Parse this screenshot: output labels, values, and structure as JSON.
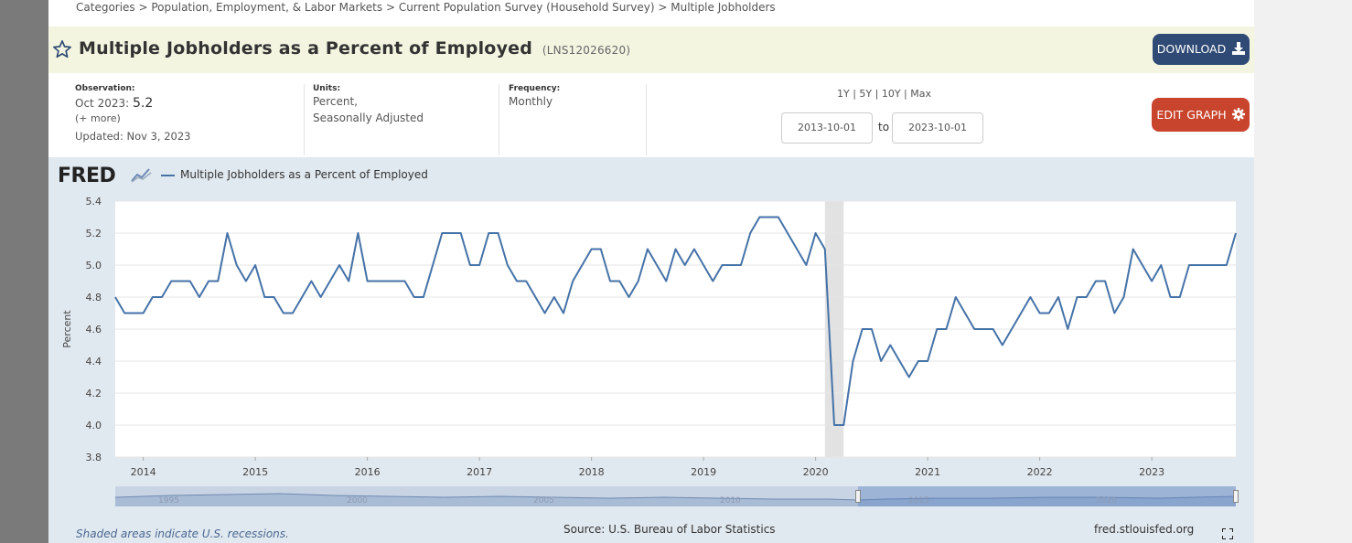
{
  "breadcrumb": {
    "text": "Categories > Population, Employment, & Labor Markets > Current Population Survey (Household Survey) > Multiple Jobholders"
  },
  "header": {
    "title": "Multiple Jobholders as a Percent of Employed",
    "series_id": "(LNS12026620)",
    "download_label": "DOWNLOAD"
  },
  "meta": {
    "observation_label": "Observation:",
    "observation_date": "Oct 2023:",
    "observation_value": "5.2",
    "more_link": "(+ more)",
    "updated": "Updated: Nov 3, 2023",
    "units_label": "Units:",
    "units_line1": "Percent,",
    "units_line2": "Seasonally Adjusted",
    "frequency_label": "Frequency:",
    "frequency_value": "Monthly"
  },
  "range": {
    "links": "1Y | 5Y | 10Y | Max",
    "start": "2013-10-01",
    "to": "to",
    "end": "2023-10-01"
  },
  "edit_label": "EDIT GRAPH",
  "chart": {
    "logo": "FRED",
    "legend": "Multiple Jobholders as a Percent of Employed",
    "recession_note": "Shaded areas indicate U.S. recessions.",
    "source": "Source: U.S. Bureau of Labor Statistics",
    "site": "fred.stlouisfed.org",
    "navigator_years": [
      "1995",
      "2000",
      "2005",
      "2010",
      "2015",
      "2020"
    ]
  },
  "colors": {
    "line": "#4572a7",
    "download": "#2f4a74",
    "edit": "#c9442c",
    "recession": "#e2e2e2"
  },
  "chart_data": {
    "type": "line",
    "title": "",
    "xlabel": "",
    "ylabel": "Percent",
    "ylim": [
      3.8,
      5.4
    ],
    "yticks": [
      "3.8",
      "4.0",
      "4.2",
      "4.4",
      "4.6",
      "4.8",
      "5.0",
      "5.2",
      "5.4"
    ],
    "xticks": [
      "2014",
      "2015",
      "2016",
      "2017",
      "2018",
      "2019",
      "2020",
      "2021",
      "2022",
      "2023"
    ],
    "x_start": "2013-10",
    "x_end": "2023-10",
    "recession": [
      "2020-02",
      "2020-04"
    ],
    "series": [
      {
        "name": "Multiple Jobholders as a Percent of Employed",
        "values": [
          4.8,
          4.7,
          4.7,
          4.7,
          4.8,
          4.8,
          4.9,
          4.9,
          4.9,
          4.8,
          4.9,
          4.9,
          5.2,
          5.0,
          4.9,
          5.0,
          4.8,
          4.8,
          4.7,
          4.7,
          4.8,
          4.9,
          4.8,
          4.9,
          5.0,
          4.9,
          5.2,
          4.9,
          4.9,
          4.9,
          4.9,
          4.9,
          4.8,
          4.8,
          5.0,
          5.2,
          5.2,
          5.2,
          5.0,
          5.0,
          5.2,
          5.2,
          5.0,
          4.9,
          4.9,
          4.8,
          4.7,
          4.8,
          4.7,
          4.9,
          5.0,
          5.1,
          5.1,
          4.9,
          4.9,
          4.8,
          4.9,
          5.1,
          5.0,
          4.9,
          5.1,
          5.0,
          5.1,
          5.0,
          4.9,
          5.0,
          5.0,
          5.0,
          5.2,
          5.3,
          5.3,
          5.3,
          5.2,
          5.1,
          5.0,
          5.2,
          5.1,
          4.0,
          4.0,
          4.4,
          4.6,
          4.6,
          4.4,
          4.5,
          4.4,
          4.3,
          4.4,
          4.4,
          4.6,
          4.6,
          4.8,
          4.7,
          4.6,
          4.6,
          4.6,
          4.5,
          4.6,
          4.7,
          4.8,
          4.7,
          4.7,
          4.8,
          4.6,
          4.8,
          4.8,
          4.9,
          4.9,
          4.7,
          4.8,
          5.1,
          5.0,
          4.9,
          5.0,
          4.8,
          4.8,
          5.0,
          5.0,
          5.0,
          5.0,
          5.0,
          5.2
        ]
      }
    ]
  }
}
